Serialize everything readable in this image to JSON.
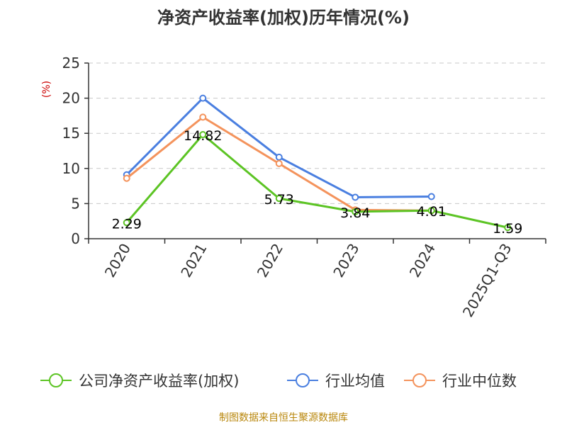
{
  "chart_data": {
    "type": "line",
    "title": "净资产收益率(加权)历年情况(%)",
    "ylabel": "(%)",
    "categories": [
      "2020",
      "2021",
      "2022",
      "2023",
      "2024",
      "2025Q1-Q3"
    ],
    "ylim": [
      0,
      25
    ],
    "yticks": [
      0,
      5,
      10,
      15,
      20,
      25
    ],
    "grid": true,
    "legend_position": "bottom",
    "series": [
      {
        "name": "公司净资产收益率(加权)",
        "color": "#5cc424",
        "values": [
          2.29,
          14.82,
          5.73,
          3.84,
          4.01,
          1.59
        ],
        "labels": [
          "2.29",
          "14.82",
          "5.73",
          "3.84",
          "4.01",
          "1.59"
        ]
      },
      {
        "name": "行业均值",
        "color": "#4a7fe0",
        "values": [
          9.1,
          20.0,
          11.6,
          5.9,
          6.0,
          null
        ]
      },
      {
        "name": "行业中位数",
        "color": "#f4935c",
        "values": [
          8.6,
          17.3,
          10.7,
          4.1,
          4.0,
          null
        ]
      }
    ]
  },
  "source": "制图数据来自恒生聚源数据库"
}
